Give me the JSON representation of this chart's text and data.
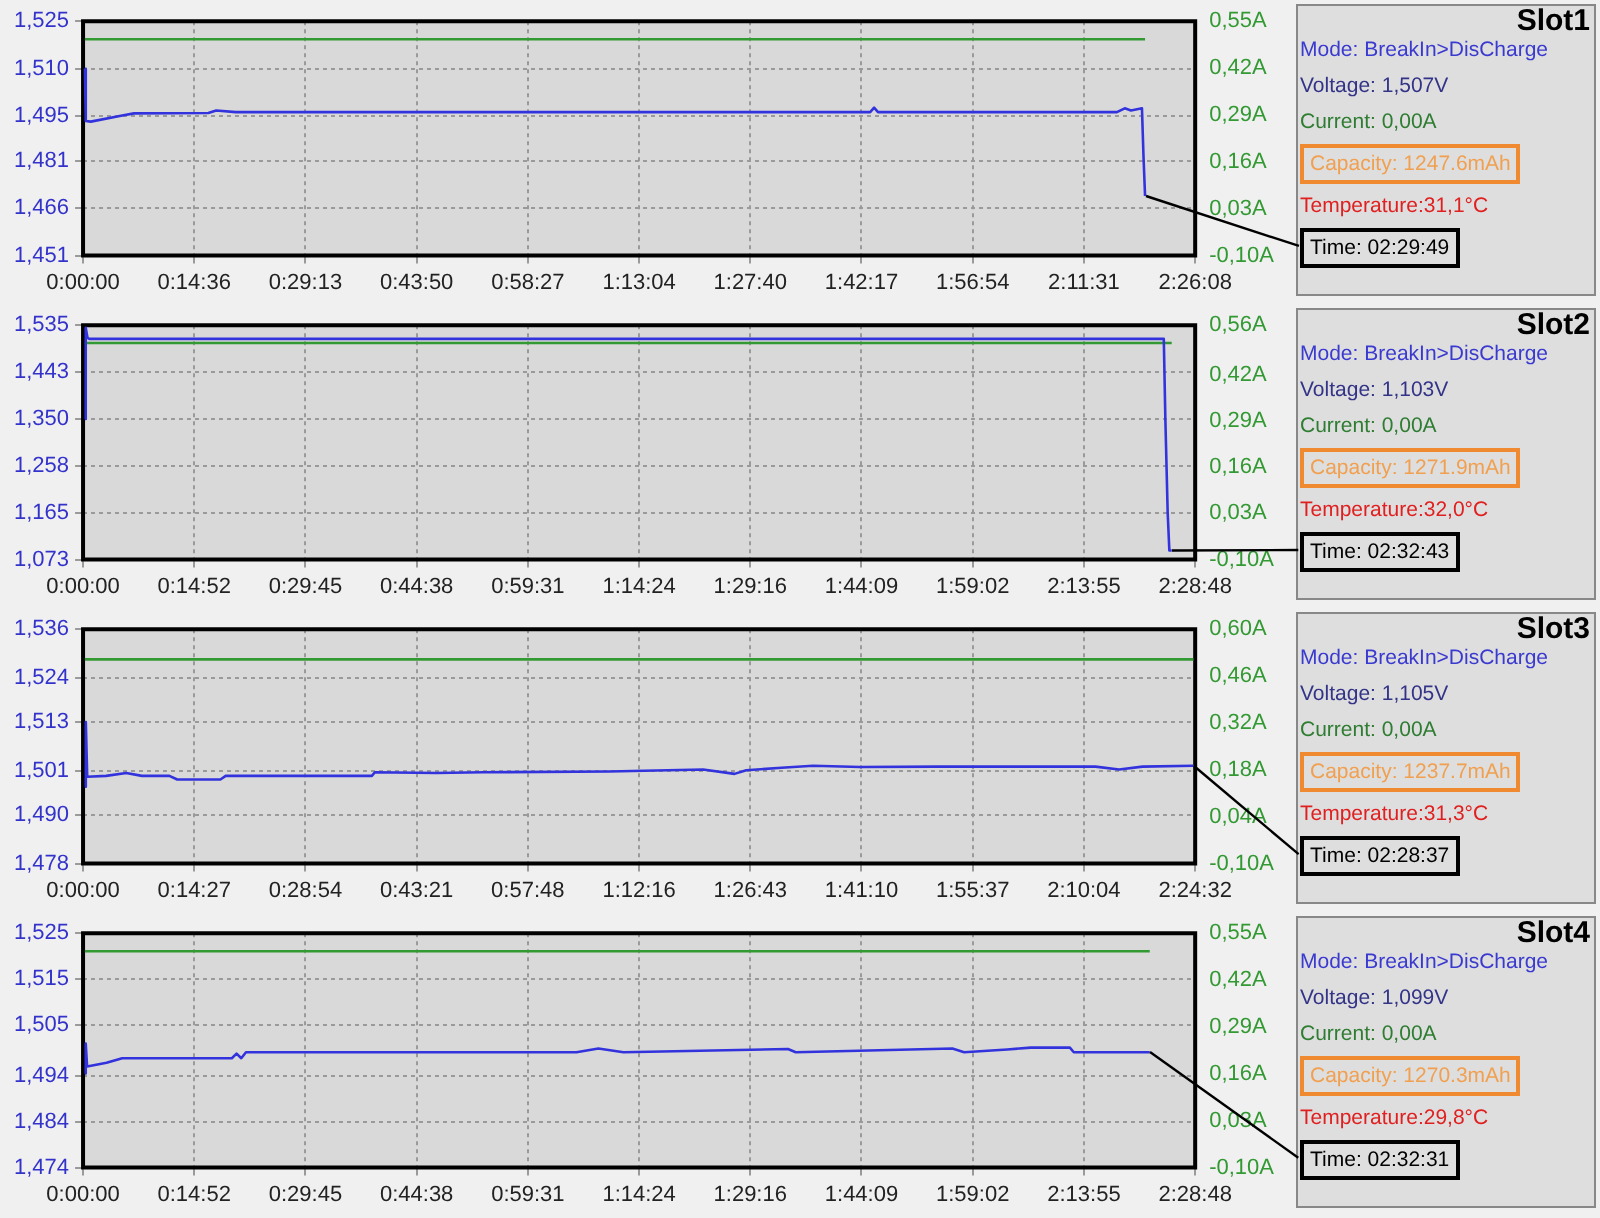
{
  "chart_data": [
    {
      "type": "line",
      "xlim": [
        0,
        2.435556
      ],
      "xticks": [
        {
          "value": 0,
          "label": "0:00:00"
        },
        {
          "value": 0.243333,
          "label": "0:14:36"
        },
        {
          "value": 0.486944,
          "label": "0:29:13"
        },
        {
          "value": 0.730556,
          "label": "0:43:50"
        },
        {
          "value": 0.974167,
          "label": "0:58:27"
        },
        {
          "value": 1.217778,
          "label": "1:13:04"
        },
        {
          "value": 1.461111,
          "label": "1:27:40"
        },
        {
          "value": 1.704722,
          "label": "1:42:17"
        },
        {
          "value": 1.948333,
          "label": "1:56:54"
        },
        {
          "value": 2.191944,
          "label": "2:11:31"
        },
        {
          "value": 2.435556,
          "label": "2:26:08"
        }
      ],
      "ylim": [
        1451,
        1525
      ],
      "yticks": [
        {
          "value": 1451,
          "label": "1,451"
        },
        {
          "value": 1466,
          "label": "1,466"
        },
        {
          "value": 1481,
          "label": "1,481"
        },
        {
          "value": 1495,
          "label": "1,495"
        },
        {
          "value": 1510,
          "label": "1,510"
        },
        {
          "value": 1525,
          "label": "1,525"
        }
      ],
      "y2lim": [
        -0.1,
        0.55
      ],
      "y2ticks": [
        {
          "value": -0.1,
          "label": "-0,10A"
        },
        {
          "value": 0.03,
          "label": "0,03A"
        },
        {
          "value": 0.16,
          "label": "0,16A"
        },
        {
          "value": 0.29,
          "label": "0,29A"
        },
        {
          "value": 0.42,
          "label": "0,42A"
        },
        {
          "value": 0.55,
          "label": "0,55A"
        }
      ],
      "grid": true,
      "series": [
        {
          "color": "#3333dd",
          "x": [
            0.004,
            0.006,
            0.017,
            0.0858,
            0.1115,
            0.2744,
            0.2916,
            0.3345,
            1.7238,
            1.7324,
            1.741,
            2.2641,
            2.2813,
            2.295,
            2.319,
            2.3224,
            2.3258
          ],
          "values": [
            1510,
            1493.5,
            1493.3,
            1495.2,
            1495.9,
            1496,
            1496.8,
            1496.3,
            1496.3,
            1497.7,
            1496.3,
            1496.3,
            1497.5,
            1496.8,
            1497.5,
            1482.2,
            1469.8
          ]
        },
        {
          "color": "#339933",
          "axis": "y2",
          "x": [
            0.004,
            2.3258
          ],
          "values": [
            0.5,
            0.5
          ]
        }
      ]
    },
    {
      "type": "other",
      "title": "Slot1",
      "annotations": [
        "Mode:  BreakIn>DisCharge",
        "Voltage: 1,507V",
        "Current: 0,00A",
        "Capacity: 1247.6mAh",
        "Temperature:31,1°C",
        "Time: 02:29:49"
      ]
    },
    {
      "type": "line",
      "xlim": [
        0,
        2.48
      ],
      "xticks": [
        {
          "value": 0,
          "label": "0:00:00"
        },
        {
          "value": 0.247778,
          "label": "0:14:52"
        },
        {
          "value": 0.495833,
          "label": "0:29:45"
        },
        {
          "value": 0.743889,
          "label": "0:44:38"
        },
        {
          "value": 0.991944,
          "label": "0:59:31"
        },
        {
          "value": 1.24,
          "label": "1:14:24"
        },
        {
          "value": 1.487778,
          "label": "1:29:16"
        },
        {
          "value": 1.735833,
          "label": "1:44:09"
        },
        {
          "value": 1.983889,
          "label": "1:59:02"
        },
        {
          "value": 2.231944,
          "label": "2:13:55"
        },
        {
          "value": 2.48,
          "label": "2:28:48"
        }
      ],
      "ylim": [
        1073,
        1535
      ],
      "yticks": [
        {
          "value": 1073,
          "label": "1,073"
        },
        {
          "value": 1165,
          "label": "1,165"
        },
        {
          "value": 1258,
          "label": "1,258"
        },
        {
          "value": 1350,
          "label": "1,350"
        },
        {
          "value": 1443,
          "label": "1,443"
        },
        {
          "value": 1535,
          "label": "1,535"
        }
      ],
      "y2lim": [
        -0.1,
        0.56
      ],
      "y2ticks": [
        {
          "value": -0.1,
          "label": "-0,10A"
        },
        {
          "value": 0.03,
          "label": "0,03A"
        },
        {
          "value": 0.16,
          "label": "0,16A"
        },
        {
          "value": 0.29,
          "label": "0,29A"
        },
        {
          "value": 0.42,
          "label": "0,42A"
        },
        {
          "value": 0.56,
          "label": "0,56A"
        }
      ],
      "grid": true,
      "series": [
        {
          "color": "#3333dd",
          "x": [
            0.004,
            0.006,
            0.01,
            0.014,
            2.41,
            2.4135,
            2.4187,
            2.4224,
            2.4277
          ],
          "values": [
            1350,
            1530,
            1510,
            1508,
            1508,
            1350,
            1165,
            1091,
            1091
          ]
        },
        {
          "color": "#339933",
          "axis": "y2",
          "x": [
            0.004,
            2.4277
          ],
          "values": [
            0.51,
            0.51
          ]
        }
      ]
    },
    {
      "type": "other",
      "title": "Slot2",
      "annotations": [
        "Mode:  BreakIn>DisCharge",
        "Voltage: 1,103V",
        "Current: 0,00A",
        "Capacity: 1271.9mAh",
        "Temperature:32,0°C",
        "Time: 02:32:43"
      ]
    },
    {
      "type": "line",
      "xlim": [
        0,
        2.408889
      ],
      "xticks": [
        {
          "value": 0,
          "label": "0:00:00"
        },
        {
          "value": 0.240833,
          "label": "0:14:27"
        },
        {
          "value": 0.481667,
          "label": "0:28:54"
        },
        {
          "value": 0.7225,
          "label": "0:43:21"
        },
        {
          "value": 0.963333,
          "label": "0:57:48"
        },
        {
          "value": 1.204444,
          "label": "1:12:16"
        },
        {
          "value": 1.445278,
          "label": "1:26:43"
        },
        {
          "value": 1.686111,
          "label": "1:41:10"
        },
        {
          "value": 1.926944,
          "label": "1:55:37"
        },
        {
          "value": 2.167778,
          "label": "2:10:04"
        },
        {
          "value": 2.408889,
          "label": "2:24:32"
        }
      ],
      "ylim": [
        1478,
        1536
      ],
      "yticks": [
        {
          "value": 1478,
          "label": "1,478"
        },
        {
          "value": 1490,
          "label": "1,490"
        },
        {
          "value": 1501,
          "label": "1,501"
        },
        {
          "value": 1513,
          "label": "1,513"
        },
        {
          "value": 1524,
          "label": "1,524"
        },
        {
          "value": 1536,
          "label": "1,536"
        }
      ],
      "y2lim": [
        -0.1,
        0.6
      ],
      "y2ticks": [
        {
          "value": -0.1,
          "label": "-0,10A"
        },
        {
          "value": 0.04,
          "label": "0,04A"
        },
        {
          "value": 0.18,
          "label": "0,18A"
        },
        {
          "value": 0.32,
          "label": "0,32A"
        },
        {
          "value": 0.46,
          "label": "0,46A"
        },
        {
          "value": 0.6,
          "label": "0,60A"
        }
      ],
      "grid": true,
      "series": [
        {
          "color": "#3333dd",
          "x": [
            0.004,
            0.006,
            0.009,
            0.05,
            0.0935,
            0.1275,
            0.187,
            0.204,
            0.2975,
            0.309,
            0.6256,
            0.632,
            0.765,
            0.867,
            1.139,
            1.343,
            1.411,
            1.4365,
            1.513,
            1.581,
            1.683,
            1.853,
            2.193,
            2.244,
            2.295,
            2.405
          ],
          "values": [
            1497,
            1513,
            1499.5,
            1499.7,
            1500.4,
            1499.7,
            1499.7,
            1498.8,
            1498.8,
            1499.7,
            1499.7,
            1500.6,
            1500.4,
            1500.6,
            1500.8,
            1501.3,
            1500.2,
            1501.1,
            1501.7,
            1502.2,
            1501.9,
            1502,
            1502,
            1501.3,
            1502,
            1502.2
          ]
        },
        {
          "color": "#339933",
          "axis": "y2",
          "x": [
            0.004,
            2.405
          ],
          "values": [
            0.51,
            0.51
          ]
        }
      ]
    },
    {
      "type": "other",
      "title": "Slot3",
      "annotations": [
        "Mode:  BreakIn>DisCharge",
        "Voltage: 1,105V",
        "Current: 0,00A",
        "Capacity: 1237.7mAh",
        "Temperature:31,3°C",
        "Time: 02:28:37"
      ]
    },
    {
      "type": "line",
      "xlim": [
        0,
        2.48
      ],
      "xticks": [
        {
          "value": 0,
          "label": "0:00:00"
        },
        {
          "value": 0.247778,
          "label": "0:14:52"
        },
        {
          "value": 0.495833,
          "label": "0:29:45"
        },
        {
          "value": 0.743889,
          "label": "0:44:38"
        },
        {
          "value": 0.991944,
          "label": "0:59:31"
        },
        {
          "value": 1.24,
          "label": "1:14:24"
        },
        {
          "value": 1.487778,
          "label": "1:29:16"
        },
        {
          "value": 1.735833,
          "label": "1:44:09"
        },
        {
          "value": 1.983889,
          "label": "1:59:02"
        },
        {
          "value": 2.231944,
          "label": "2:13:55"
        },
        {
          "value": 2.48,
          "label": "2:28:48"
        }
      ],
      "ylim": [
        1474,
        1525
      ],
      "yticks": [
        {
          "value": 1474,
          "label": "1,474"
        },
        {
          "value": 1484,
          "label": "1,484"
        },
        {
          "value": 1494,
          "label": "1,494"
        },
        {
          "value": 1505,
          "label": "1,505"
        },
        {
          "value": 1515,
          "label": "1,515"
        },
        {
          "value": 1525,
          "label": "1,525"
        }
      ],
      "y2lim": [
        -0.1,
        0.55
      ],
      "y2ticks": [
        {
          "value": -0.1,
          "label": "-0,10A"
        },
        {
          "value": 0.03,
          "label": "0,03A"
        },
        {
          "value": 0.16,
          "label": "0,16A"
        },
        {
          "value": 0.29,
          "label": "0,29A"
        },
        {
          "value": 0.42,
          "label": "0,42A"
        },
        {
          "value": 0.55,
          "label": "0,55A"
        }
      ],
      "grid": true,
      "series": [
        {
          "color": "#3333dd",
          "x": [
            0.004,
            0.006,
            0.009,
            0.0524,
            0.0873,
            0.3318,
            0.3423,
            0.3528,
            0.3633,
            1.1003,
            1.1492,
            1.2051,
            1.5719,
            1.5893,
            1.9386,
            1.9648,
            2.0609,
            2.1133,
            2.2006,
            2.2093,
            2.3787
          ],
          "values": [
            1494.5,
            1501,
            1496,
            1496.8,
            1497.8,
            1497.8,
            1498.8,
            1497.8,
            1499.1,
            1499.1,
            1499.9,
            1499.1,
            1499.8,
            1499.1,
            1499.9,
            1499.1,
            1499.7,
            1500.1,
            1500.1,
            1499.1,
            1499.1
          ]
        },
        {
          "color": "#339933",
          "axis": "y2",
          "x": [
            0.004,
            2.3787
          ],
          "values": [
            0.5,
            0.5
          ]
        }
      ]
    },
    {
      "type": "other",
      "title": "Slot4",
      "annotations": [
        "Mode:  BreakIn>DisCharge",
        "Voltage: 1,099V",
        "Current: 0,00A",
        "Capacity: 1270.3mAh",
        "Temperature:29,8°C",
        "Time: 02:32:31"
      ]
    }
  ]
}
